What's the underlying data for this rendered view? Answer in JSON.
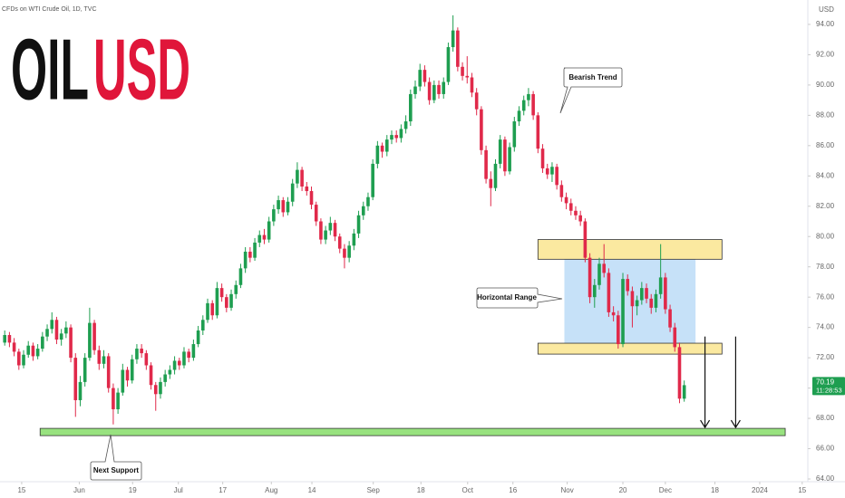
{
  "source": "CFDs on WTI Crude Oil, 1D, TVC",
  "chart_data": {
    "type": "candlestick",
    "title": {
      "base": "OIL",
      "quote": "USD"
    },
    "currency": "USD",
    "countdown": "11:28:53",
    "up_color": "#1e9e50",
    "down_color": "#e0294a",
    "xlim": [
      -1,
      170
    ],
    "xticks": [
      {
        "value": 3.6,
        "label": "15"
      },
      {
        "value": 15.8,
        "label": "Jun"
      },
      {
        "value": 27.1,
        "label": "19"
      },
      {
        "value": 36.8,
        "label": "Jul"
      },
      {
        "value": 46.2,
        "label": "17"
      },
      {
        "value": 56.5,
        "label": "Aug"
      },
      {
        "value": 65.1,
        "label": "14"
      },
      {
        "value": 78.1,
        "label": "Sep"
      },
      {
        "value": 88.2,
        "label": "18"
      },
      {
        "value": 98.1,
        "label": "Oct"
      },
      {
        "value": 107.7,
        "label": "16"
      },
      {
        "value": 119.2,
        "label": "Nov"
      },
      {
        "value": 131,
        "label": "20"
      },
      {
        "value": 140,
        "label": "Dec"
      },
      {
        "value": 150.5,
        "label": "18"
      },
      {
        "value": 160,
        "label": "2024"
      },
      {
        "value": 169,
        "label": "15"
      }
    ],
    "ylim": [
      63.82,
      95.61
    ],
    "yticks": [
      {
        "value": 64,
        "label": "64.00"
      },
      {
        "value": 66,
        "label": "66.00"
      },
      {
        "value": 68,
        "label": "68.00"
      },
      {
        "value": 70,
        "label": "70.00"
      },
      {
        "value": 72,
        "label": "72.00"
      },
      {
        "value": 74,
        "label": "74.00"
      },
      {
        "value": 76,
        "label": "76.00"
      },
      {
        "value": 78,
        "label": "78.00"
      },
      {
        "value": 80,
        "label": "80.00"
      },
      {
        "value": 82,
        "label": "82.00"
      },
      {
        "value": 84,
        "label": "84.00"
      },
      {
        "value": 86,
        "label": "86.00"
      },
      {
        "value": 88,
        "label": "88.00"
      },
      {
        "value": 90,
        "label": "90.00"
      },
      {
        "value": 92,
        "label": "92.00"
      },
      {
        "value": 94,
        "label": "94.00"
      }
    ],
    "candles": [
      [
        73.0,
        73.8,
        72.8,
        73.5
      ],
      [
        73.5,
        73.7,
        72.7,
        73.0
      ],
      [
        73.0,
        73.3,
        72.1,
        72.4
      ],
      [
        72.4,
        72.6,
        71.2,
        71.5
      ],
      [
        71.5,
        72.5,
        71.3,
        72.2
      ],
      [
        72.2,
        73.1,
        72.0,
        72.8
      ],
      [
        72.8,
        73.0,
        71.8,
        72.1
      ],
      [
        72.1,
        72.9,
        71.9,
        72.6
      ],
      [
        72.6,
        73.7,
        72.4,
        73.4
      ],
      [
        73.4,
        74.2,
        73.1,
        73.9
      ],
      [
        73.9,
        75.0,
        73.6,
        74.5
      ],
      [
        74.5,
        74.7,
        72.9,
        73.2
      ],
      [
        73.2,
        73.9,
        72.8,
        73.6
      ],
      [
        73.6,
        74.4,
        73.3,
        74.0
      ],
      [
        74.0,
        74.2,
        71.7,
        72.0
      ],
      [
        72.0,
        72.3,
        68.1,
        69.2
      ],
      [
        69.2,
        70.8,
        68.8,
        70.4
      ],
      [
        70.4,
        72.3,
        70.1,
        72.0
      ],
      [
        72.0,
        75.3,
        71.8,
        74.3
      ],
      [
        74.3,
        74.5,
        72.2,
        72.5
      ],
      [
        72.5,
        72.8,
        71.2,
        71.6
      ],
      [
        71.6,
        72.5,
        71.3,
        72.1
      ],
      [
        72.1,
        72.3,
        69.7,
        70.0
      ],
      [
        70.0,
        70.3,
        67.6,
        68.6
      ],
      [
        68.6,
        70.0,
        68.3,
        69.7
      ],
      [
        69.7,
        71.6,
        69.5,
        71.2
      ],
      [
        71.2,
        71.4,
        70.1,
        70.5
      ],
      [
        70.5,
        72.2,
        70.3,
        71.9
      ],
      [
        71.9,
        72.9,
        71.6,
        72.6
      ],
      [
        72.6,
        72.9,
        72.0,
        72.3
      ],
      [
        72.3,
        72.5,
        71.2,
        71.5
      ],
      [
        71.5,
        71.7,
        69.9,
        70.2
      ],
      [
        70.2,
        70.4,
        68.5,
        69.6
      ],
      [
        69.6,
        70.7,
        69.3,
        70.4
      ],
      [
        70.4,
        71.2,
        70.1,
        70.9
      ],
      [
        70.9,
        71.5,
        70.6,
        71.2
      ],
      [
        71.2,
        72.1,
        70.9,
        71.8
      ],
      [
        71.8,
        72.0,
        71.2,
        71.5
      ],
      [
        71.5,
        72.7,
        71.3,
        72.4
      ],
      [
        72.4,
        72.6,
        71.7,
        72.0
      ],
      [
        72.0,
        73.2,
        71.8,
        72.9
      ],
      [
        72.9,
        74.1,
        72.7,
        73.8
      ],
      [
        73.8,
        74.8,
        73.5,
        74.5
      ],
      [
        74.5,
        75.9,
        74.3,
        75.6
      ],
      [
        75.6,
        75.8,
        74.5,
        74.8
      ],
      [
        74.8,
        77.0,
        74.6,
        76.6
      ],
      [
        76.6,
        76.9,
        75.7,
        76.0
      ],
      [
        76.0,
        76.2,
        75.0,
        75.3
      ],
      [
        75.3,
        76.5,
        75.1,
        76.2
      ],
      [
        76.2,
        77.1,
        75.9,
        76.8
      ],
      [
        76.8,
        78.2,
        76.6,
        77.9
      ],
      [
        77.9,
        79.3,
        77.6,
        79.0
      ],
      [
        79.0,
        79.3,
        78.3,
        78.6
      ],
      [
        78.6,
        79.9,
        78.4,
        79.6
      ],
      [
        79.6,
        80.4,
        79.3,
        80.1
      ],
      [
        80.1,
        80.5,
        79.5,
        79.8
      ],
      [
        79.8,
        81.3,
        79.6,
        81.0
      ],
      [
        81.0,
        82.1,
        80.7,
        81.8
      ],
      [
        81.8,
        82.7,
        81.5,
        82.4
      ],
      [
        82.4,
        82.6,
        81.3,
        81.6
      ],
      [
        81.6,
        82.6,
        81.4,
        82.3
      ],
      [
        82.3,
        83.8,
        82.0,
        83.5
      ],
      [
        83.5,
        84.9,
        83.2,
        84.4
      ],
      [
        84.4,
        84.6,
        83.0,
        83.3
      ],
      [
        83.3,
        83.6,
        82.7,
        83.0
      ],
      [
        83.0,
        83.3,
        81.8,
        82.1
      ],
      [
        82.1,
        82.3,
        80.7,
        81.0
      ],
      [
        81.0,
        81.2,
        79.5,
        79.8
      ],
      [
        79.8,
        80.7,
        79.5,
        80.4
      ],
      [
        80.4,
        81.3,
        80.1,
        80.9
      ],
      [
        80.9,
        81.1,
        79.7,
        80.0
      ],
      [
        80.0,
        80.2,
        78.9,
        79.2
      ],
      [
        79.2,
        79.5,
        77.9,
        78.6
      ],
      [
        78.6,
        79.7,
        78.3,
        79.4
      ],
      [
        79.4,
        80.5,
        79.1,
        80.2
      ],
      [
        80.2,
        81.7,
        79.9,
        81.4
      ],
      [
        81.4,
        82.3,
        81.1,
        82.0
      ],
      [
        82.0,
        82.9,
        81.7,
        82.6
      ],
      [
        82.6,
        85.1,
        82.4,
        84.8
      ],
      [
        84.8,
        86.3,
        84.5,
        86.0
      ],
      [
        86.0,
        86.2,
        85.2,
        85.6
      ],
      [
        85.6,
        86.7,
        85.3,
        86.4
      ],
      [
        86.4,
        87.0,
        86.1,
        86.7
      ],
      [
        86.7,
        87.0,
        86.2,
        86.5
      ],
      [
        86.5,
        87.4,
        86.2,
        87.1
      ],
      [
        87.1,
        88.0,
        86.8,
        87.6
      ],
      [
        87.6,
        89.7,
        87.3,
        89.4
      ],
      [
        89.4,
        90.3,
        89.1,
        89.9
      ],
      [
        89.9,
        91.4,
        89.6,
        91.0
      ],
      [
        91.0,
        91.3,
        89.9,
        90.2
      ],
      [
        90.2,
        90.5,
        88.7,
        89.0
      ],
      [
        89.0,
        90.3,
        88.8,
        90.0
      ],
      [
        90.0,
        90.3,
        89.1,
        89.4
      ],
      [
        89.4,
        90.5,
        89.1,
        90.2
      ],
      [
        90.2,
        92.8,
        90.0,
        92.5
      ],
      [
        92.5,
        94.6,
        92.2,
        93.6
      ],
      [
        93.6,
        93.8,
        90.9,
        91.2
      ],
      [
        91.2,
        91.5,
        90.3,
        90.6
      ],
      [
        90.6,
        91.9,
        90.1,
        90.5
      ],
      [
        90.5,
        90.8,
        89.2,
        89.5
      ],
      [
        89.5,
        89.8,
        88.0,
        88.4
      ],
      [
        88.4,
        88.6,
        85.4,
        85.7
      ],
      [
        85.7,
        86.0,
        83.5,
        83.8
      ],
      [
        83.8,
        84.3,
        82.0,
        83.2
      ],
      [
        83.2,
        85.1,
        83.0,
        84.8
      ],
      [
        84.8,
        86.7,
        84.5,
        86.4
      ],
      [
        86.4,
        86.6,
        84.0,
        84.3
      ],
      [
        84.3,
        86.2,
        84.1,
        85.9
      ],
      [
        85.9,
        87.9,
        85.6,
        87.6
      ],
      [
        87.6,
        88.6,
        87.3,
        88.3
      ],
      [
        88.3,
        89.3,
        88.0,
        89.0
      ],
      [
        89.0,
        89.8,
        88.6,
        89.4
      ],
      [
        89.4,
        89.6,
        87.7,
        88.0
      ],
      [
        88.0,
        88.2,
        85.5,
        85.8
      ],
      [
        85.8,
        86.1,
        84.2,
        84.5
      ],
      [
        84.5,
        84.8,
        83.8,
        84.1
      ],
      [
        84.1,
        84.9,
        83.6,
        84.6
      ],
      [
        84.6,
        84.8,
        83.1,
        83.4
      ],
      [
        83.4,
        83.7,
        82.3,
        82.6
      ],
      [
        82.6,
        82.9,
        81.8,
        82.2
      ],
      [
        82.2,
        82.5,
        81.4,
        81.7
      ],
      [
        81.7,
        82.0,
        81.1,
        81.4
      ],
      [
        81.4,
        81.7,
        80.7,
        81.0
      ],
      [
        81.0,
        81.2,
        78.3,
        78.6
      ],
      [
        78.6,
        78.9,
        75.6,
        76.0
      ],
      [
        76.0,
        77.2,
        75.3,
        76.8
      ],
      [
        76.8,
        78.6,
        76.5,
        78.2
      ],
      [
        78.2,
        79.5,
        77.3,
        77.6
      ],
      [
        77.6,
        77.9,
        74.7,
        75.0
      ],
      [
        75.0,
        75.4,
        74.4,
        74.8
      ],
      [
        74.8,
        75.1,
        72.6,
        72.9
      ],
      [
        72.9,
        77.6,
        72.7,
        77.2
      ],
      [
        77.2,
        77.5,
        76.1,
        76.4
      ],
      [
        76.4,
        76.7,
        74.0,
        75.4
      ],
      [
        75.4,
        76.1,
        74.8,
        75.8
      ],
      [
        75.8,
        77.0,
        75.5,
        76.6
      ],
      [
        76.6,
        76.9,
        75.6,
        75.9
      ],
      [
        75.9,
        76.2,
        74.9,
        75.3
      ],
      [
        75.3,
        76.5,
        75.0,
        76.2
      ],
      [
        76.2,
        79.5,
        75.9,
        77.3
      ],
      [
        77.3,
        77.6,
        74.9,
        75.2
      ],
      [
        75.2,
        75.5,
        73.7,
        74.0
      ],
      [
        74.0,
        74.3,
        72.4,
        72.7
      ],
      [
        72.7,
        73.0,
        69.0,
        69.3
      ],
      [
        69.3,
        70.5,
        69.1,
        70.19
      ]
    ],
    "zones": [
      {
        "name": "Horizontal Range",
        "range": [
          72.9,
          78.5
        ],
        "span": [
          118.6,
          146.4
        ],
        "color": "#bcdcf7"
      },
      {
        "range": [
          78.5,
          79.8
        ],
        "span": [
          113,
          152
        ],
        "color": "#fbe9a0"
      },
      {
        "range": [
          72.24,
          72.96
        ],
        "span": [
          113,
          152
        ],
        "color": "#fbe9a0"
      },
      {
        "name": "Next Support",
        "range": [
          66.86,
          67.34
        ],
        "span": [
          7.5,
          165.4
        ],
        "color": "#98e27f"
      }
    ],
    "arrows": [
      {
        "at": 148.4,
        "from": 73.4,
        "to": 67.4
      },
      {
        "at": 154.9,
        "from": 73.4,
        "to": 67.4
      }
    ],
    "annotations": {
      "trend": "Bearish Trend"
    }
  }
}
